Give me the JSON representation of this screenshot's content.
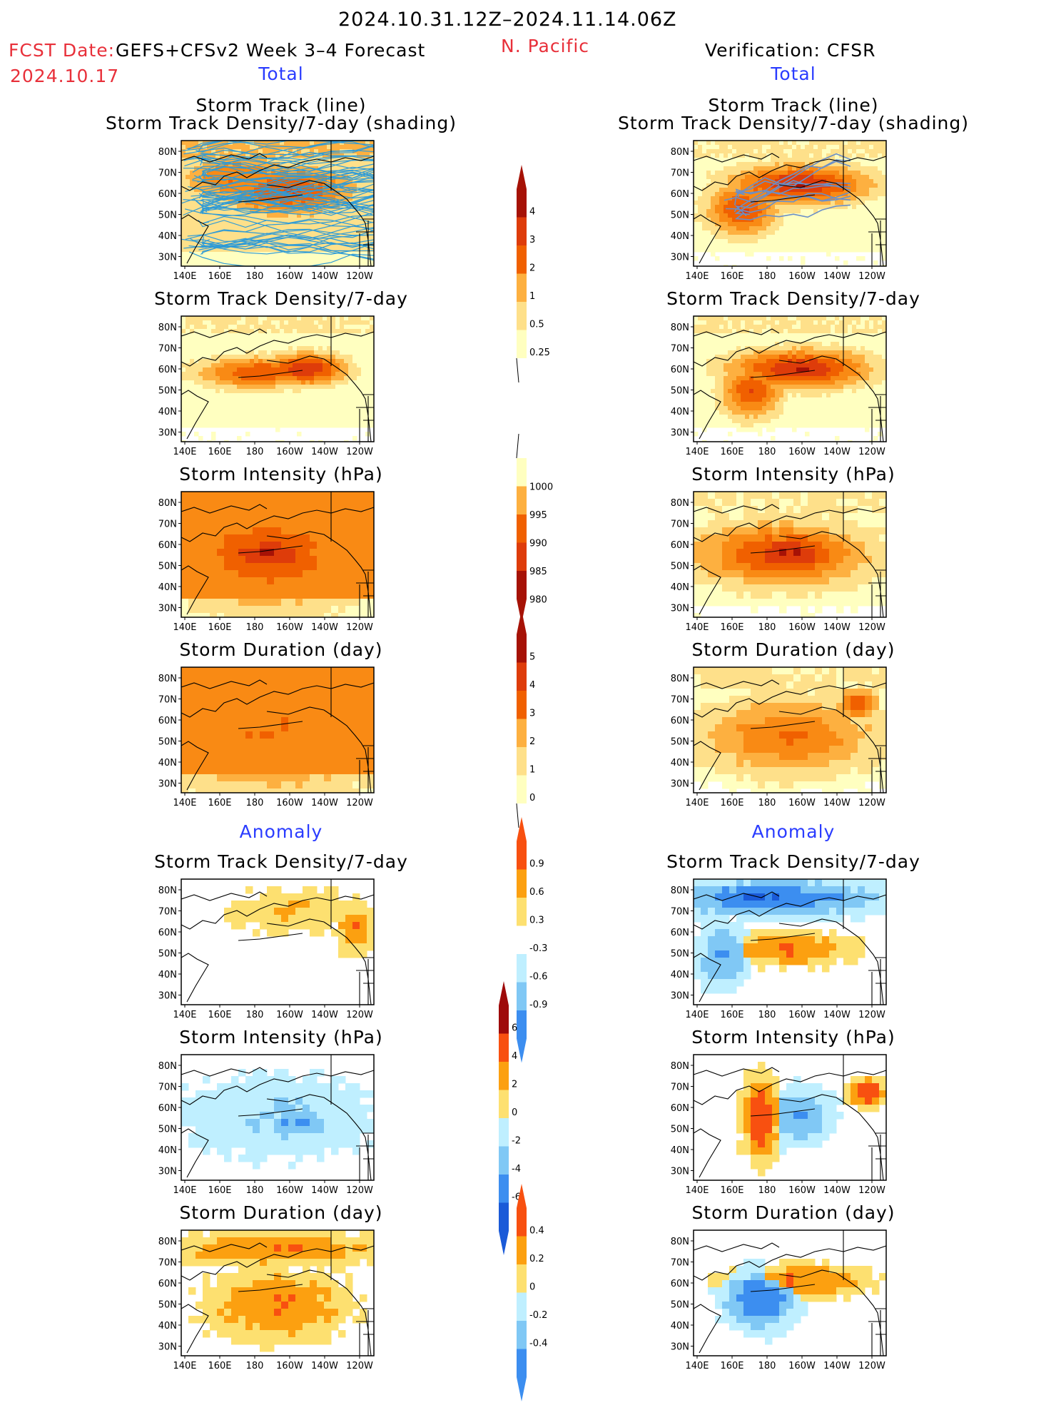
{
  "header": {
    "period": "2024.10.31.12Z–2024.11.14.06Z",
    "fcst_date_label": "FCST Date:",
    "forecast_model": "GEFS+CFSv2 Week 3–4 Forecast",
    "fcst_date": "2024.10.17",
    "region": "N. Pacific",
    "verification": "Verification: CFSR",
    "total_label": "Total",
    "anomaly_label": "Anomaly"
  },
  "axes": {
    "lat_labels": [
      "80N",
      "70N",
      "60N",
      "50N",
      "40N",
      "30N"
    ],
    "lon_labels": [
      "140E",
      "160E",
      "180",
      "160W",
      "140W",
      "120W"
    ]
  },
  "panel_titles": {
    "st_line": "Storm Track (line)",
    "st_shading": "Storm Track Density/7-day (shading)",
    "st_density": "Storm Track Density/7-day",
    "intensity": "Storm Intensity (hPa)",
    "duration": "Storm Duration (day)"
  },
  "colorbars": {
    "density": [
      "4",
      "3",
      "2",
      "1",
      "0.5",
      "0.25"
    ],
    "intensity": [
      "1000",
      "995",
      "990",
      "985",
      "980"
    ],
    "duration": [
      "5",
      "4",
      "3",
      "2",
      "1",
      "0"
    ],
    "density_anom": [
      "0.9",
      "0.6",
      "0.3",
      "-0.3",
      "-0.6",
      "-0.9"
    ],
    "intensity_anom": [
      "6",
      "4",
      "2",
      "0",
      "-2",
      "-4",
      "-6"
    ],
    "duration_anom": [
      "0.4",
      "0.2",
      "0",
      "-0.2",
      "-0.4"
    ]
  },
  "colors": {
    "pos_scale": [
      "#ffffc0",
      "#fee08a",
      "#fdb040",
      "#f98a14",
      "#f06000",
      "#de3c0a",
      "#a61206"
    ],
    "anom_pos": [
      "#fde070",
      "#fca010",
      "#f85010",
      "#9e0a0a"
    ],
    "anom_neg": [
      "#bfefff",
      "#80c8f5",
      "#3c8ef0",
      "#1a5ad8"
    ]
  }
}
